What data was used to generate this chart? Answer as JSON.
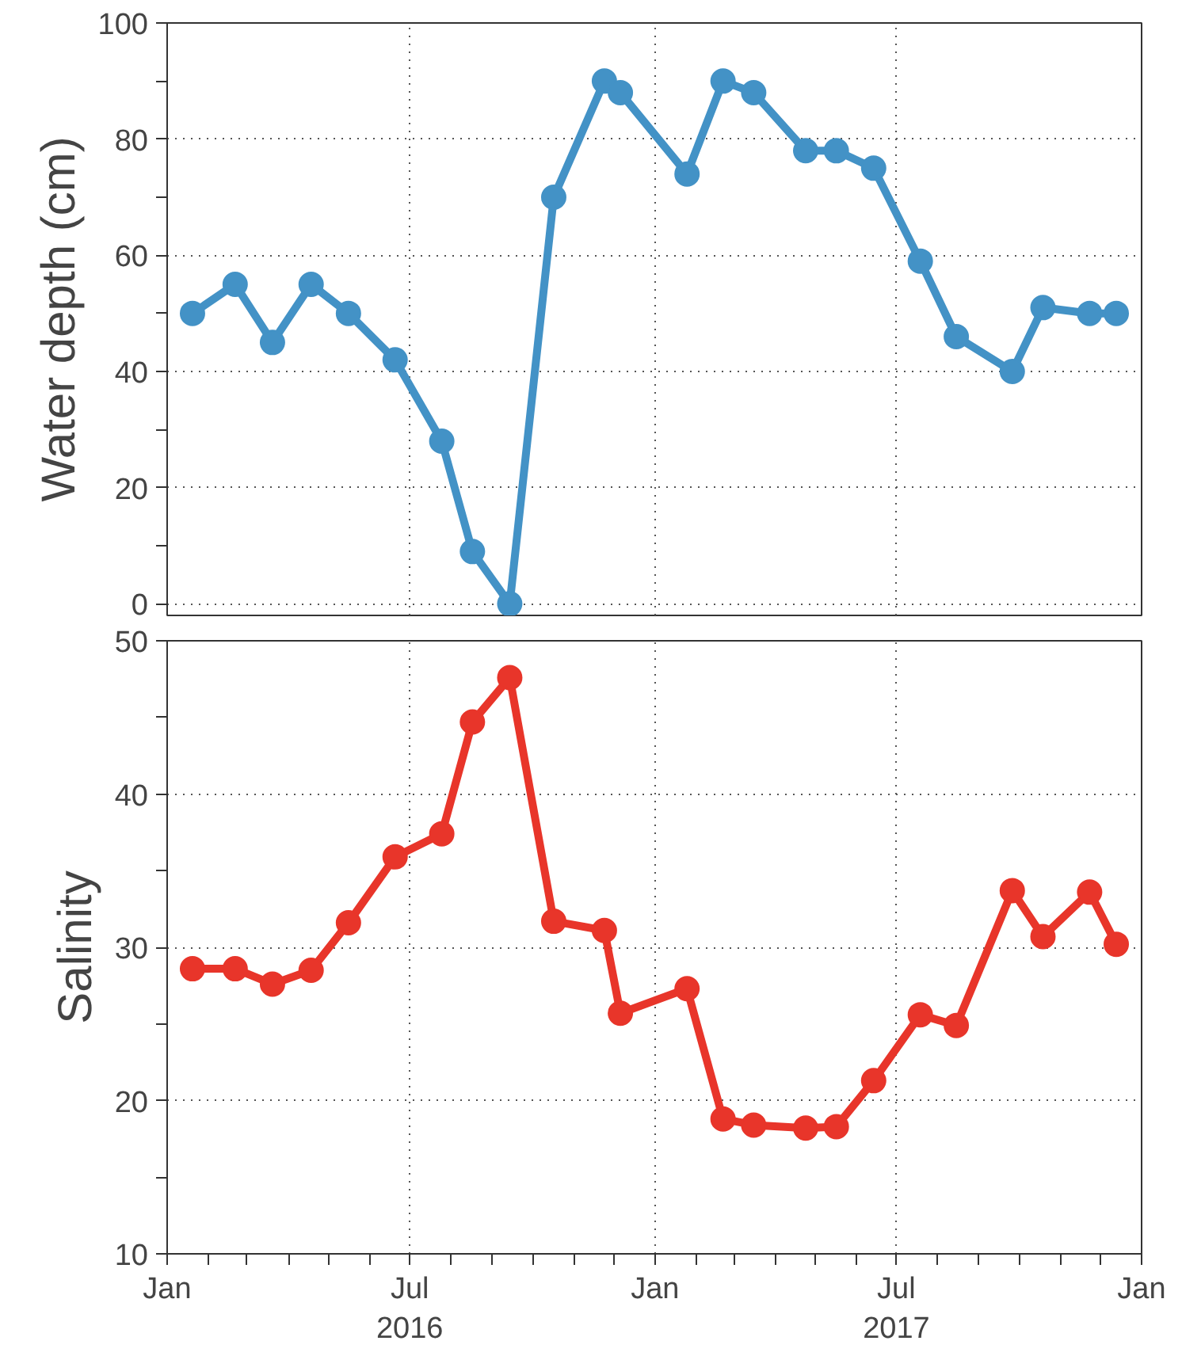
{
  "chart_data": [
    {
      "type": "line",
      "ylabel": "Water depth (cm)",
      "marker": "circle",
      "line_style": "solid",
      "grid": true,
      "tick_labels": "y",
      "x": [
        "2016-01-20",
        "2016-02-21",
        "2016-03-20",
        "2016-04-18",
        "2016-05-16",
        "2016-06-20",
        "2016-07-25",
        "2016-08-17",
        "2016-09-14",
        "2016-10-17",
        "2016-11-24",
        "2016-12-06",
        "2017-01-25",
        "2017-02-21",
        "2017-03-16",
        "2017-04-24",
        "2017-05-17",
        "2017-06-14",
        "2017-07-19",
        "2017-08-15",
        "2017-09-26",
        "2017-10-19",
        "2017-11-23",
        "2017-12-13"
      ],
      "series": [
        {
          "color": "#4392c6",
          "values": [
            50,
            55,
            45,
            55,
            50,
            42,
            28,
            9,
            0,
            70,
            90,
            88,
            74,
            90,
            88,
            78,
            78,
            75,
            59,
            46,
            40,
            51,
            50,
            50
          ]
        }
      ],
      "xlim": [
        "2016-01-01",
        "2018-01-01"
      ],
      "xticks": [
        {
          "value": "2016-07-01",
          "label": null
        },
        {
          "value": "2017-01-01",
          "label": null
        },
        {
          "value": "2017-07-01",
          "label": null
        }
      ],
      "ylim": [
        -2,
        100
      ],
      "yticks": [
        0,
        {
          "value": 10,
          "label": null
        },
        20,
        {
          "value": 30,
          "label": null
        },
        40,
        {
          "value": 50,
          "label": null
        },
        60,
        {
          "value": 70,
          "label": null
        },
        80,
        {
          "value": 90,
          "label": null
        },
        100
      ]
    },
    {
      "type": "line",
      "ylabel": "Salinity",
      "marker": "circle",
      "line_style": "solid",
      "grid": true,
      "x": [
        "2016-01-20",
        "2016-02-21",
        "2016-03-20",
        "2016-04-18",
        "2016-05-16",
        "2016-06-20",
        "2016-07-25",
        "2016-08-17",
        "2016-09-14",
        "2016-10-17",
        "2016-11-24",
        "2016-12-06",
        "2017-01-25",
        "2017-02-21",
        "2017-03-16",
        "2017-04-24",
        "2017-05-17",
        "2017-06-14",
        "2017-07-19",
        "2017-08-15",
        "2017-09-26",
        "2017-10-19",
        "2017-11-23",
        "2017-12-13"
      ],
      "series": [
        {
          "color": "#e8352a",
          "values": [
            28.6,
            28.6,
            27.6,
            28.5,
            31.6,
            35.9,
            37.4,
            44.7,
            47.6,
            31.7,
            31.1,
            25.7,
            27.3,
            18.8,
            18.4,
            18.2,
            18.3,
            21.3,
            25.6,
            24.9,
            33.7,
            30.7,
            33.6,
            30.2
          ]
        }
      ],
      "xlim": [
        "2016-01-01",
        "2018-01-01"
      ],
      "xticks": [
        {
          "value": "2016-01-01",
          "label": "Jan"
        },
        {
          "value": "2016-02-01",
          "label": null
        },
        {
          "value": "2016-03-01",
          "label": null
        },
        {
          "value": "2016-04-01",
          "label": null
        },
        {
          "value": "2016-05-01",
          "label": null
        },
        {
          "value": "2016-06-01",
          "label": null
        },
        {
          "value": "2016-07-01",
          "label": "Jul\n2016"
        },
        {
          "value": "2016-08-01",
          "label": null
        },
        {
          "value": "2016-09-01",
          "label": null
        },
        {
          "value": "2016-10-01",
          "label": null
        },
        {
          "value": "2016-11-01",
          "label": null
        },
        {
          "value": "2016-12-01",
          "label": null
        },
        {
          "value": "2017-01-01",
          "label": "Jan"
        },
        {
          "value": "2017-02-01",
          "label": null
        },
        {
          "value": "2017-03-01",
          "label": null
        },
        {
          "value": "2017-04-01",
          "label": null
        },
        {
          "value": "2017-05-01",
          "label": null
        },
        {
          "value": "2017-06-01",
          "label": null
        },
        {
          "value": "2017-07-01",
          "label": "Jul\n2017"
        },
        {
          "value": "2017-08-01",
          "label": null
        },
        {
          "value": "2017-09-01",
          "label": null
        },
        {
          "value": "2017-10-01",
          "label": null
        },
        {
          "value": "2017-11-01",
          "label": null
        },
        {
          "value": "2017-12-01",
          "label": null
        },
        {
          "value": "2018-01-01",
          "label": "Jan"
        }
      ],
      "ylim": [
        10,
        50
      ],
      "yticks": [
        10,
        {
          "value": 15,
          "label": null
        },
        20,
        {
          "value": 25,
          "label": null
        },
        30,
        {
          "value": 35,
          "label": null
        },
        40,
        {
          "value": 45,
          "label": null
        },
        50
      ]
    }
  ]
}
